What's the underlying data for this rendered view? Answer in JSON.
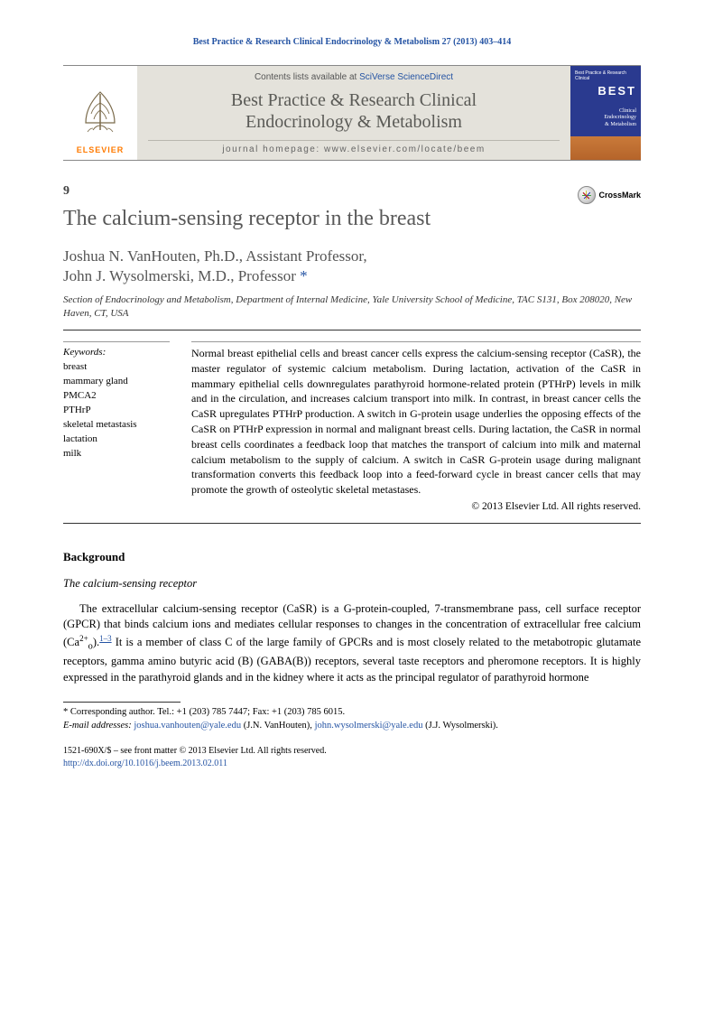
{
  "journal_ref": "Best Practice & Research Clinical Endocrinology & Metabolism 27 (2013) 403–414",
  "masthead": {
    "elsevier": "ELSEVIER",
    "contents_prefix": "Contents lists available at ",
    "contents_link": "SciVerse ScienceDirect",
    "journal_name_line1": "Best Practice & Research Clinical",
    "journal_name_line2": "Endocrinology & Metabolism",
    "homepage_label": "journal homepage: ",
    "homepage_url": "www.elsevier.com/locate/beem",
    "cover_top": "Best Practice & Research Clinical",
    "cover_best": "BEST",
    "cover_mid1": "Clinical",
    "cover_mid2": "Endocrinology",
    "cover_mid3": "& Metabolism"
  },
  "section_number": "9",
  "title": "The calcium-sensing receptor in the breast",
  "crossmark": "CrossMark",
  "authors": "Joshua N. VanHouten, Ph.D., Assistant Professor,\nJohn J. Wysolmerski, M.D., Professor",
  "affiliation": "Section of Endocrinology and Metabolism, Department of Internal Medicine, Yale University School of Medicine, TAC S131, Box 208020, New Haven, CT, USA",
  "keywords": {
    "heading": "Keywords:",
    "items": [
      "breast",
      "mammary gland",
      "PMCA2",
      "PTHrP",
      "skeletal metastasis",
      "lactation",
      "milk"
    ]
  },
  "abstract": "Normal breast epithelial cells and breast cancer cells express the calcium-sensing receptor (CaSR), the master regulator of systemic calcium metabolism. During lactation, activation of the CaSR in mammary epithelial cells downregulates parathyroid hormone-related protein (PTHrP) levels in milk and in the circulation, and increases calcium transport into milk. In contrast, in breast cancer cells the CaSR upregulates PTHrP production. A switch in G-protein usage underlies the opposing effects of the CaSR on PTHrP expression in normal and malignant breast cells. During lactation, the CaSR in normal breast cells coordinates a feedback loop that matches the transport of calcium into milk and maternal calcium metabolism to the supply of calcium. A switch in CaSR G-protein usage during malignant transformation converts this feedback loop into a feed-forward cycle in breast cancer cells that may promote the growth of osteolytic skeletal metastases.",
  "copyright": "© 2013 Elsevier Ltd. All rights reserved.",
  "background_heading": "Background",
  "subheading": "The calcium-sensing receptor",
  "body": {
    "p1_a": "The extracellular calcium-sensing receptor (CaSR) is a G-protein-coupled, 7-transmembrane pass, cell surface receptor (GPCR) that binds calcium ions and mediates cellular responses to changes in the concentration of extracellular free calcium (Ca",
    "p1_sup1": "2+",
    "p1_sub1": "o",
    "p1_b": ").",
    "p1_ref": "1–3",
    "p1_c": " It is a member of class C of the large family of GPCRs and is most closely related to the metabotropic glutamate receptors, gamma amino butyric acid (B) (GABA(B)) receptors, several taste receptors and pheromone receptors. It is highly expressed in the parathyroid glands and in the kidney where it acts as the principal regulator of parathyroid hormone"
  },
  "footnotes": {
    "corresponding": "* Corresponding author. Tel.: +1 (203) 785 7447; Fax: +1 (203) 785 6015.",
    "email_label": "E-mail addresses:",
    "email1": "joshua.vanhouten@yale.edu",
    "email1_attr": " (J.N. VanHouten), ",
    "email2": "john.wysolmerski@yale.edu",
    "email2_attr": " (J.J. Wysolmerski)."
  },
  "bottom": {
    "issn_line": "1521-690X/$ – see front matter © 2013 Elsevier Ltd. All rights reserved.",
    "doi": "http://dx.doi.org/10.1016/j.beem.2013.02.011"
  },
  "colors": {
    "link": "#2453a3",
    "elsevier_orange": "#ff7a00",
    "masthead_bg": "#e4e2db",
    "cover_blue": "#2a3a8f"
  }
}
